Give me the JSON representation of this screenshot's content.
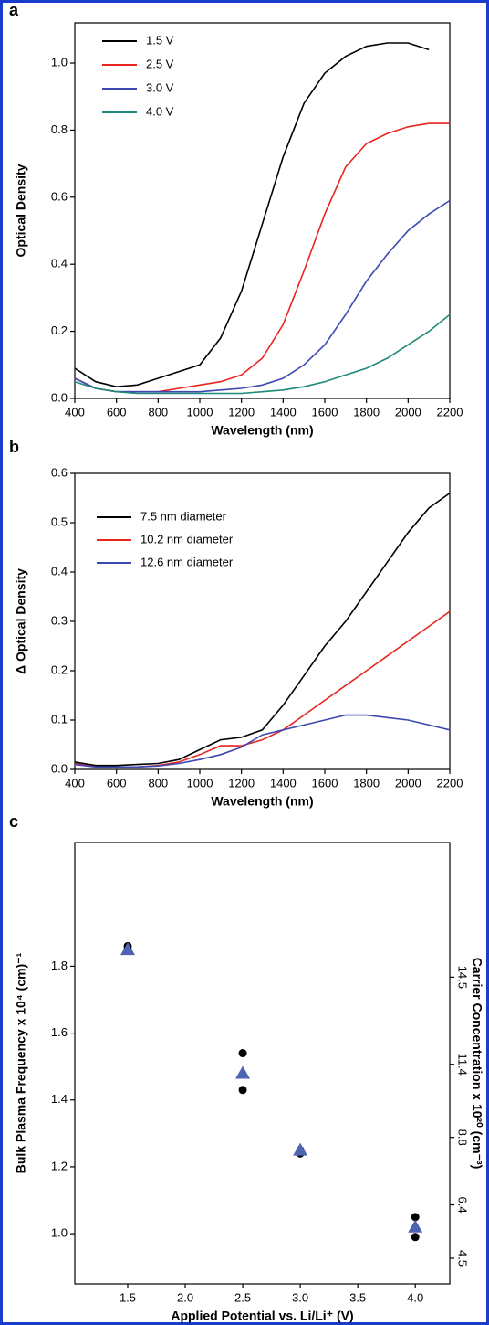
{
  "chart_data": [
    {
      "type": "line",
      "panel_label": "a",
      "x_label": "Wavelength (nm)",
      "y_label": "Optical Density",
      "x": [
        400,
        500,
        600,
        700,
        800,
        900,
        1000,
        1100,
        1200,
        1300,
        1400,
        1500,
        1600,
        1700,
        1800,
        1900,
        2000,
        2100,
        2200
      ],
      "series": [
        {
          "name": "1.5 V",
          "color": "#000000",
          "values": [
            0.09,
            0.05,
            0.035,
            0.04,
            0.06,
            0.08,
            0.1,
            0.18,
            0.32,
            0.52,
            0.72,
            0.88,
            0.97,
            1.02,
            1.05,
            1.06,
            1.06,
            1.04,
            null
          ]
        },
        {
          "name": "2.5 V",
          "color": "#e8251f",
          "values": [
            0.06,
            0.03,
            0.02,
            0.02,
            0.02,
            0.03,
            0.04,
            0.05,
            0.07,
            0.12,
            0.22,
            0.38,
            0.55,
            0.69,
            0.76,
            0.79,
            0.81,
            0.82,
            0.82
          ]
        },
        {
          "name": "3.0 V",
          "color": "#3d48b0",
          "values": [
            0.06,
            0.03,
            0.02,
            0.02,
            0.02,
            0.02,
            0.02,
            0.025,
            0.03,
            0.04,
            0.06,
            0.1,
            0.16,
            0.25,
            0.35,
            0.43,
            0.5,
            0.55,
            0.59
          ]
        },
        {
          "name": "4.0 V",
          "color": "#1f8a7a",
          "values": [
            0.05,
            0.03,
            0.02,
            0.015,
            0.015,
            0.015,
            0.015,
            0.015,
            0.015,
            0.02,
            0.025,
            0.035,
            0.05,
            0.07,
            0.09,
            0.12,
            0.16,
            0.2,
            0.25
          ]
        }
      ],
      "xlim": [
        400,
        2200
      ],
      "xticks": [
        400,
        600,
        800,
        1000,
        1200,
        1400,
        1600,
        1800,
        2000,
        2200
      ],
      "ylim": [
        0,
        1.12
      ],
      "yticks": [
        {
          "value": 0,
          "label": "0.0"
        },
        0.2,
        0.4,
        0.6,
        0.8,
        {
          "value": 1,
          "label": "1.0"
        }
      ],
      "legend": "upper left"
    },
    {
      "type": "line",
      "panel_label": "b",
      "x_label": "Wavelength (nm)",
      "y_label": "Δ Optical Density",
      "x": [
        400,
        500,
        600,
        700,
        800,
        900,
        1000,
        1100,
        1200,
        1300,
        1400,
        1500,
        1600,
        1700,
        1800,
        1900,
        2000,
        2100,
        2200
      ],
      "series": [
        {
          "name": "7.5 nm diameter",
          "color": "#000000",
          "values": [
            0.015,
            0.008,
            0.008,
            0.01,
            0.012,
            0.02,
            0.04,
            0.06,
            0.065,
            0.08,
            0.13,
            0.19,
            0.25,
            0.3,
            0.36,
            0.42,
            0.48,
            0.53,
            0.56
          ]
        },
        {
          "name": "10.2 nm diameter",
          "color": "#e8251f",
          "values": [
            0.012,
            0.005,
            0.005,
            0.005,
            0.008,
            0.015,
            0.03,
            0.048,
            0.048,
            0.06,
            0.08,
            0.11,
            0.14,
            0.17,
            0.2,
            0.23,
            0.26,
            0.29,
            0.32
          ]
        },
        {
          "name": "12.6 nm diameter",
          "color": "#3d48b0",
          "values": [
            0.01,
            0.005,
            0.005,
            0.005,
            0.007,
            0.012,
            0.02,
            0.03,
            0.045,
            0.07,
            0.08,
            0.09,
            0.1,
            0.11,
            0.11,
            0.105,
            0.1,
            0.09,
            0.08
          ]
        }
      ],
      "xlim": [
        400,
        2200
      ],
      "xticks": [
        400,
        600,
        800,
        1000,
        1200,
        1400,
        1600,
        1800,
        2000,
        2200
      ],
      "ylim": [
        0,
        0.6
      ],
      "yticks": [
        {
          "value": 0,
          "label": "0.0"
        },
        0.1,
        0.2,
        0.3,
        0.4,
        0.5,
        0.6
      ],
      "legend": "upper left"
    },
    {
      "type": "scatter",
      "panel_label": "c",
      "x_label": "Applied Potential vs. Li/Li⁺ (V)",
      "y_label": "Bulk Plasma Frequency x 10⁴ (cm)⁻¹",
      "y2_label": "Carrier Concentration x 10²⁰ (cm⁻³)",
      "series": [
        {
          "color": "#000000",
          "marker": "circle",
          "x": [
            1.5,
            1.5,
            2.5,
            2.5,
            3.0,
            3.0,
            4.0,
            4.0
          ],
          "values": [
            1.86,
            1.85,
            1.54,
            1.43,
            1.25,
            1.24,
            1.05,
            0.99
          ]
        },
        {
          "color": "#4f63b5",
          "marker": "triangle",
          "x": [
            1.5,
            2.5,
            3.0,
            4.0
          ],
          "values": [
            1.85,
            1.48,
            1.25,
            1.02
          ]
        }
      ],
      "xlim": [
        1.04,
        4.3
      ],
      "xticks": [
        1.5,
        {
          "value": 2,
          "label": "2.0"
        },
        2.5,
        {
          "value": 3,
          "label": "3.0"
        },
        3.5,
        {
          "value": 4,
          "label": "4.0"
        }
      ],
      "ylim": [
        0.85,
        2.17
      ],
      "yticks": [
        {
          "value": 1,
          "label": "1.0"
        },
        1.2,
        1.4,
        1.6,
        1.8
      ],
      "y2lim": [
        3.59,
        19.29
      ],
      "y2ticks": [
        4.5,
        6.4,
        8.8,
        11.4,
        14.5
      ]
    }
  ]
}
